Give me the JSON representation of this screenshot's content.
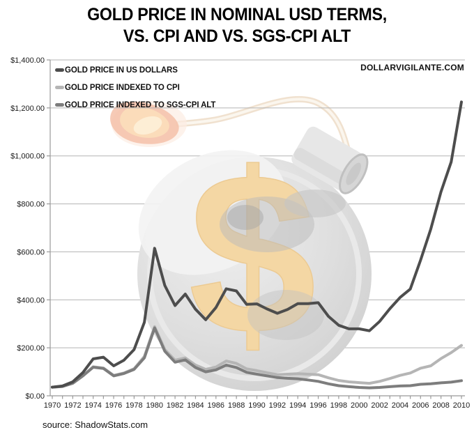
{
  "title": {
    "line1": "GOLD PRICE IN NOMINAL USD TERMS,",
    "line2": "VS. CPI AND VS. SGS-CPI ALT"
  },
  "watermark_text": "DOLLARVIGILANTE.COM",
  "source_text": "source: ShadowStats.com",
  "watermark": {
    "symbol": "$"
  },
  "chart_data": {
    "type": "line",
    "x_years": [
      1970,
      1971,
      1972,
      1973,
      1974,
      1975,
      1976,
      1977,
      1978,
      1979,
      1980,
      1981,
      1982,
      1983,
      1984,
      1985,
      1986,
      1987,
      1988,
      1989,
      1990,
      1991,
      1992,
      1993,
      1994,
      1995,
      1996,
      1997,
      1998,
      1999,
      2000,
      2001,
      2002,
      2003,
      2004,
      2005,
      2006,
      2007,
      2008,
      2009,
      2010
    ],
    "series": [
      {
        "name": "GOLD PRICE IN US DOLLARS",
        "color": "#4d4d4d",
        "values": [
          36,
          41,
          58,
          97,
          154,
          161,
          125,
          148,
          193,
          306,
          615,
          460,
          376,
          424,
          361,
          317,
          368,
          446,
          437,
          381,
          383,
          362,
          344,
          360,
          384,
          384,
          388,
          331,
          294,
          279,
          279,
          271,
          310,
          363,
          410,
          445,
          565,
          695,
          850,
          975,
          1225
        ]
      },
      {
        "name": "GOLD PRICE INDEXED TO CPI",
        "color": "#b5b5b5",
        "values": [
          36,
          39,
          53,
          84,
          121,
          116,
          85,
          95,
          113,
          164,
          288,
          193,
          148,
          158,
          128,
          110,
          120,
          145,
          135,
          112,
          105,
          96,
          88,
          90,
          92,
          90,
          88,
          75,
          64,
          58,
          55,
          52,
          60,
          72,
          85,
          95,
          115,
          125,
          155,
          180,
          210
        ]
      },
      {
        "name": "GOLD PRICE INDEXED TO SGS-CPI ALT",
        "color": "#7d7d7d",
        "values": [
          36,
          39,
          52,
          83,
          119,
          114,
          83,
          93,
          110,
          158,
          283,
          186,
          140,
          150,
          118,
          100,
          108,
          128,
          118,
          98,
          90,
          83,
          76,
          73,
          71,
          66,
          60,
          50,
          42,
          38,
          35,
          33,
          35,
          38,
          41,
          42,
          48,
          50,
          54,
          57,
          63
        ]
      }
    ],
    "ylim": [
      0,
      1400
    ],
    "ytick_step": 200,
    "ytick_labels": [
      "$0.00",
      "$200.00",
      "$400.00",
      "$600.00",
      "$800.00",
      "$1,000.00",
      "$1,200.00",
      "$1,400.00"
    ],
    "xtick_labels": [
      "1970",
      "1972",
      "1974",
      "1976",
      "1978",
      "1980",
      "1982",
      "1984",
      "1986",
      "1988",
      "1990",
      "1992",
      "1994",
      "1996",
      "1998",
      "2000",
      "2002",
      "2004",
      "2006",
      "2008",
      "2010"
    ],
    "grid": true,
    "grid_color": "#b3b3b3",
    "axis_color": "#999999",
    "text_color": "#1a1a1a",
    "legend_position": "top-left"
  }
}
